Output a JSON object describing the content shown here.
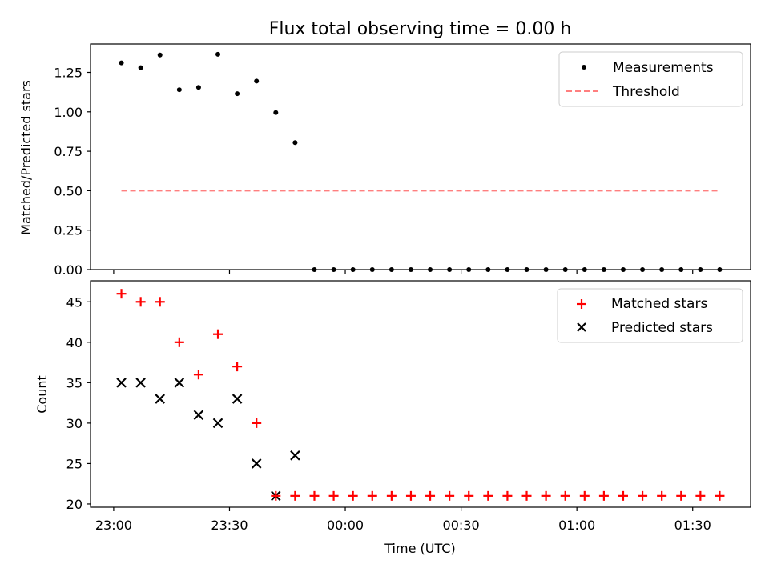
{
  "chart_data": [
    {
      "type": "scatter",
      "title": "Flux total observing time = 0.00 h",
      "xlabel": "",
      "ylabel": "Matched/Predicted stars",
      "ylim": [
        0,
        1.43
      ],
      "yticks": [
        0.0,
        0.25,
        0.5,
        0.75,
        1.0,
        1.25
      ],
      "ytick_labels": [
        "0.00",
        "0.25",
        "0.50",
        "0.75",
        "1.00",
        "1.25"
      ],
      "xlim_minutes": [
        -6,
        165
      ],
      "legend_position": "top-right",
      "series": [
        {
          "name": "Measurements",
          "kind": "points",
          "color": "#000000",
          "x_minutes": [
            2,
            7,
            12,
            17,
            22,
            27,
            32,
            37,
            42,
            47,
            52,
            57,
            62,
            67,
            72,
            77,
            82,
            87,
            92,
            97,
            102,
            107,
            112,
            117,
            122,
            127,
            132,
            137,
            142,
            147,
            152,
            157
          ],
          "values": [
            1.31,
            1.28,
            1.36,
            1.14,
            1.155,
            1.365,
            1.115,
            1.195,
            0.995,
            0.805,
            0,
            0,
            0,
            0,
            0,
            0,
            0,
            0,
            0,
            0,
            0,
            0,
            0,
            0,
            0,
            0,
            0,
            0,
            0,
            0,
            0,
            0
          ]
        },
        {
          "name": "Threshold",
          "kind": "dashed-line",
          "color": "#ff7f7f",
          "x_minutes": [
            2,
            157
          ],
          "values": [
            0.5,
            0.5
          ]
        }
      ]
    },
    {
      "type": "scatter",
      "title": "",
      "xlabel": "Time (UTC)",
      "ylabel": "Count",
      "ylim": [
        19.6,
        47.6
      ],
      "yticks": [
        20,
        25,
        30,
        35,
        40,
        45
      ],
      "ytick_labels": [
        "20",
        "25",
        "30",
        "35",
        "40",
        "45"
      ],
      "xlim_minutes": [
        -6,
        165
      ],
      "xticks_minutes": [
        0,
        30,
        60,
        90,
        120,
        150
      ],
      "xtick_labels": [
        "23:00",
        "23:30",
        "00:00",
        "00:30",
        "01:00",
        "01:30"
      ],
      "legend_position": "top-right",
      "series": [
        {
          "name": "Matched stars",
          "marker": "plus",
          "color": "#ff0000",
          "x_minutes": [
            2,
            7,
            12,
            17,
            22,
            27,
            32,
            37,
            42,
            47,
            52,
            57,
            62,
            67,
            72,
            77,
            82,
            87,
            92,
            97,
            102,
            107,
            112,
            117,
            122,
            127,
            132,
            137,
            142,
            147,
            152,
            157
          ],
          "values": [
            46,
            45,
            45,
            40,
            36,
            41,
            37,
            30,
            21,
            21,
            21,
            21,
            21,
            21,
            21,
            21,
            21,
            21,
            21,
            21,
            21,
            21,
            21,
            21,
            21,
            21,
            21,
            21,
            21,
            21,
            21,
            21
          ]
        },
        {
          "name": "Predicted stars",
          "marker": "x",
          "color": "#000000",
          "x_minutes": [
            2,
            7,
            12,
            17,
            22,
            27,
            32,
            37,
            42,
            47
          ],
          "values": [
            35,
            35,
            33,
            35,
            31,
            30,
            33,
            25,
            21,
            26
          ]
        }
      ]
    }
  ]
}
